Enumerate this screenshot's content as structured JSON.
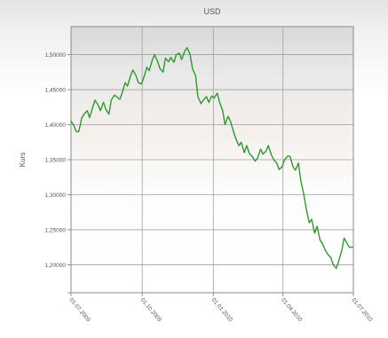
{
  "chart_data": {
    "type": "line",
    "title": "USD",
    "xlabel": "",
    "ylabel": "Kurs",
    "ylim": [
      1.16,
      1.54
    ],
    "xlim": [
      "2009-07-01",
      "2010-07-01"
    ],
    "y_ticks": [
      "1,20000",
      "1,25000",
      "1,30000",
      "1,35000",
      "1,40000",
      "1,45000",
      "1,50000"
    ],
    "x_ticks": [
      "01.07.2009",
      "01.10.2009",
      "01.01.2010",
      "01.04.2010",
      "01.07.2010"
    ],
    "grid": true,
    "legend": "none",
    "line_color": "#2e9a2e",
    "series": [
      {
        "x": [
          "2009-07-01",
          "2009-07-04",
          "2009-07-08",
          "2009-07-11",
          "2009-07-15",
          "2009-07-18",
          "2009-07-22",
          "2009-07-25",
          "2009-07-29",
          "2009-08-01",
          "2009-08-05",
          "2009-08-08",
          "2009-08-12",
          "2009-08-15",
          "2009-08-19",
          "2009-08-22",
          "2009-08-26",
          "2009-08-29",
          "2009-09-02",
          "2009-09-05",
          "2009-09-09",
          "2009-09-12",
          "2009-09-16",
          "2009-09-19",
          "2009-09-23",
          "2009-09-26",
          "2009-09-30",
          "2009-10-03",
          "2009-10-07",
          "2009-10-10",
          "2009-10-14",
          "2009-10-17",
          "2009-10-21",
          "2009-10-24",
          "2009-10-28",
          "2009-10-31",
          "2009-11-04",
          "2009-11-07",
          "2009-11-11",
          "2009-11-14",
          "2009-11-18",
          "2009-11-21",
          "2009-11-25",
          "2009-11-28",
          "2009-12-02",
          "2009-12-05",
          "2009-12-09",
          "2009-12-12",
          "2009-12-16",
          "2009-12-19",
          "2009-12-23",
          "2009-12-26",
          "2009-12-30",
          "2010-01-02",
          "2010-01-06",
          "2010-01-09",
          "2010-01-13",
          "2010-01-16",
          "2010-01-20",
          "2010-01-23",
          "2010-01-27",
          "2010-01-30",
          "2010-02-03",
          "2010-02-06",
          "2010-02-10",
          "2010-02-13",
          "2010-02-17",
          "2010-02-20",
          "2010-02-24",
          "2010-02-27",
          "2010-03-03",
          "2010-03-06",
          "2010-03-10",
          "2010-03-13",
          "2010-03-17",
          "2010-03-20",
          "2010-03-24",
          "2010-03-27",
          "2010-03-31",
          "2010-04-03",
          "2010-04-07",
          "2010-04-10",
          "2010-04-14",
          "2010-04-17",
          "2010-04-21",
          "2010-04-24",
          "2010-04-28",
          "2010-05-01",
          "2010-05-05",
          "2010-05-08",
          "2010-05-12",
          "2010-05-15",
          "2010-05-19",
          "2010-05-22",
          "2010-05-26",
          "2010-05-29",
          "2010-06-02",
          "2010-06-05",
          "2010-06-09",
          "2010-06-12",
          "2010-06-16",
          "2010-06-19",
          "2010-06-23",
          "2010-06-26",
          "2010-06-30"
        ],
        "y": [
          1.405,
          1.4,
          1.39,
          1.39,
          1.41,
          1.415,
          1.42,
          1.41,
          1.425,
          1.435,
          1.428,
          1.42,
          1.432,
          1.422,
          1.415,
          1.435,
          1.442,
          1.44,
          1.436,
          1.445,
          1.46,
          1.455,
          1.47,
          1.478,
          1.47,
          1.46,
          1.458,
          1.467,
          1.482,
          1.477,
          1.492,
          1.5,
          1.49,
          1.48,
          1.475,
          1.495,
          1.49,
          1.496,
          1.489,
          1.5,
          1.502,
          1.493,
          1.505,
          1.51,
          1.5,
          1.48,
          1.47,
          1.44,
          1.43,
          1.435,
          1.44,
          1.432,
          1.441,
          1.438,
          1.445,
          1.432,
          1.42,
          1.4,
          1.412,
          1.405,
          1.39,
          1.38,
          1.37,
          1.375,
          1.36,
          1.37,
          1.358,
          1.355,
          1.348,
          1.352,
          1.365,
          1.358,
          1.362,
          1.37,
          1.357,
          1.35,
          1.345,
          1.336,
          1.34,
          1.35,
          1.355,
          1.355,
          1.34,
          1.335,
          1.345,
          1.32,
          1.3,
          1.28,
          1.26,
          1.265,
          1.245,
          1.255,
          1.235,
          1.23,
          1.22,
          1.215,
          1.21,
          1.2,
          1.195,
          1.205,
          1.22,
          1.238,
          1.23,
          1.225,
          1.225
        ]
      }
    ]
  }
}
